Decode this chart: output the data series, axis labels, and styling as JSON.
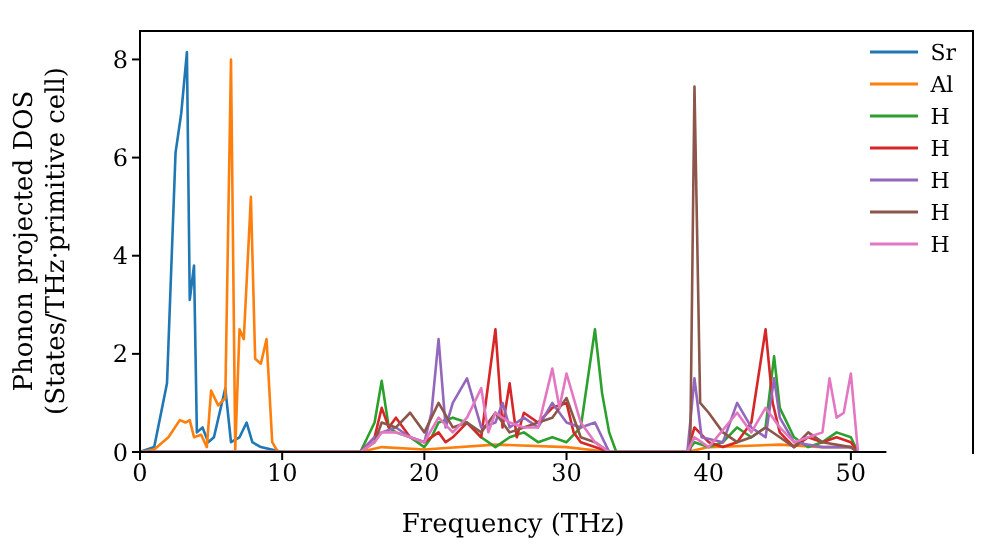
{
  "chart_data": {
    "type": "line",
    "xlabel": "Frequency (THz)",
    "ylabel": "Phonon projected DOS\n(States/THz·primitive cell)",
    "xlim": [
      0,
      52.5
    ],
    "ylim": [
      0,
      8.6
    ],
    "xticks": [
      0,
      10,
      20,
      30,
      40,
      50
    ],
    "yticks": [
      0,
      2,
      4,
      6,
      8
    ],
    "legend": "top right",
    "marker": "none",
    "line_style": "solid",
    "series": [
      {
        "name": "Sr",
        "color": "#1f77b4",
        "x": [
          0,
          1,
          1.9,
          2.5,
          2.9,
          3.3,
          3.5,
          3.8,
          4.0,
          4.4,
          4.8,
          5.2,
          6.0,
          6.4,
          7.0,
          7.5,
          7.9,
          8.5,
          10
        ],
        "values": [
          0,
          0.1,
          1.4,
          6.1,
          6.9,
          8.15,
          3.1,
          3.8,
          0.4,
          0.5,
          0.2,
          0.3,
          1.3,
          0.2,
          0.3,
          0.6,
          0.2,
          0.1,
          0
        ]
      },
      {
        "name": "Al",
        "color": "#ff7f0e",
        "x": [
          0,
          1,
          2,
          2.8,
          3.2,
          3.5,
          3.8,
          4.3,
          4.7,
          5.0,
          5.5,
          6.0,
          6.4,
          6.7,
          7.0,
          7.3,
          7.8,
          8.1,
          8.5,
          8.9,
          9.3,
          9.7,
          15.5,
          17,
          20,
          25,
          30,
          33,
          38.5,
          40,
          45,
          48,
          50,
          50.5
        ],
        "values": [
          0,
          0.05,
          0.3,
          0.65,
          0.6,
          0.65,
          0.3,
          0.35,
          0.1,
          1.25,
          0.95,
          1.1,
          8.0,
          0.05,
          2.5,
          2.3,
          5.2,
          1.9,
          1.8,
          2.3,
          0.2,
          0,
          0,
          0.1,
          0.05,
          0.15,
          0.1,
          0,
          0,
          0.1,
          0.15,
          0.1,
          0.1,
          0
        ]
      },
      {
        "name": "H",
        "color": "#2ca02c",
        "x": [
          0,
          15.5,
          16.5,
          17,
          17.5,
          18,
          19,
          20,
          20.5,
          21,
          22,
          23,
          24,
          25,
          26,
          27,
          28,
          29,
          30,
          31,
          32,
          32.5,
          33,
          33.5,
          38.5,
          39,
          40,
          41,
          42,
          43,
          44,
          44.6,
          45,
          46,
          47,
          48,
          49,
          50,
          50.5
        ],
        "values": [
          0,
          0,
          0.6,
          1.45,
          0.5,
          0.4,
          0.3,
          0.1,
          0.3,
          0.6,
          0.7,
          0.6,
          0.3,
          0.1,
          0.3,
          0.4,
          0.2,
          0.3,
          0.2,
          0.5,
          2.5,
          1.2,
          0.4,
          0,
          0,
          0.2,
          0.1,
          0.2,
          0.5,
          0.3,
          0.5,
          1.95,
          0.9,
          0.3,
          0.1,
          0.2,
          0.4,
          0.3,
          0
        ]
      },
      {
        "name": "H",
        "color": "#d62728",
        "x": [
          0,
          15.5,
          16.5,
          17,
          17.5,
          18,
          18.5,
          19,
          20,
          21,
          21.5,
          22,
          23,
          24,
          25,
          25.5,
          26,
          26.5,
          27,
          28,
          29,
          30,
          30.5,
          31,
          32,
          33,
          38.5,
          39,
          40,
          41,
          42,
          43,
          44,
          44.5,
          45,
          46,
          47,
          48,
          49,
          50,
          50.5
        ],
        "values": [
          0,
          0,
          0.3,
          0.9,
          0.5,
          0.7,
          0.5,
          0.3,
          0.2,
          0.4,
          0.2,
          0.3,
          0.6,
          0.3,
          2.5,
          0.5,
          1.4,
          0.3,
          0.8,
          0.6,
          0.9,
          1.0,
          0.4,
          0.2,
          0.1,
          0,
          0,
          0.5,
          0.2,
          0.1,
          0.2,
          0.6,
          2.5,
          1.0,
          0.4,
          0.1,
          0.3,
          0.2,
          0.3,
          0.2,
          0
        ]
      },
      {
        "name": "H",
        "color": "#9467bd",
        "x": [
          0,
          15.5,
          16.5,
          17,
          18,
          19,
          20,
          20.5,
          21,
          21.5,
          22,
          23,
          24,
          25,
          25.5,
          26,
          27,
          28,
          29,
          30,
          31,
          32,
          33,
          38.5,
          39,
          39.5,
          41,
          42,
          43,
          44,
          44.6,
          45,
          46,
          48,
          50,
          50.5
        ],
        "values": [
          0,
          0,
          0.3,
          0.4,
          0.5,
          0.3,
          0.2,
          0.8,
          2.3,
          0.5,
          1.0,
          1.5,
          0.5,
          0.6,
          1.0,
          0.5,
          0.7,
          0.5,
          1.0,
          0.6,
          0.5,
          0.6,
          0,
          0,
          1.5,
          0.3,
          0.2,
          1.0,
          0.5,
          0.3,
          1.5,
          0.7,
          0.2,
          0.1,
          0.1,
          0
        ]
      },
      {
        "name": "H",
        "color": "#8c564b",
        "x": [
          0,
          15.5,
          16.5,
          17,
          18,
          19,
          20,
          21,
          22,
          23,
          24,
          25,
          26,
          27,
          28,
          29,
          30,
          31,
          32,
          33,
          38.7,
          39,
          39.4,
          40,
          41,
          42,
          43,
          44,
          45,
          46,
          47,
          48,
          50,
          50.5
        ],
        "values": [
          0,
          0,
          0.2,
          0.6,
          0.5,
          0.8,
          0.4,
          1.0,
          0.5,
          0.6,
          0.4,
          0.8,
          0.4,
          0.5,
          0.6,
          0.7,
          1.1,
          0.3,
          0.2,
          0,
          0,
          7.45,
          1.0,
          0.8,
          0.4,
          0.2,
          0.3,
          0.5,
          0.3,
          0.1,
          0.4,
          0.2,
          0.1,
          0
        ]
      },
      {
        "name": "H",
        "color": "#e377c2",
        "x": [
          0,
          15.5,
          16.5,
          17,
          18,
          19,
          20,
          21,
          22,
          23,
          24,
          24.5,
          25,
          26,
          27,
          28,
          29,
          29.5,
          30,
          31,
          32,
          33,
          38.5,
          39,
          40,
          42,
          43,
          44,
          45,
          46,
          47,
          48,
          48.5,
          49,
          49.5,
          50,
          50.5
        ],
        "values": [
          0,
          0,
          0.2,
          0.4,
          0.4,
          0.3,
          0.2,
          0.7,
          0.4,
          0.7,
          1.3,
          0.4,
          0.8,
          0.6,
          0.5,
          0.5,
          1.7,
          0.9,
          1.6,
          0.6,
          0.2,
          0,
          0,
          0.3,
          0.1,
          0.8,
          0.4,
          0.9,
          0.5,
          0.2,
          0.3,
          0.4,
          1.5,
          0.7,
          0.8,
          1.6,
          0
        ]
      }
    ]
  }
}
